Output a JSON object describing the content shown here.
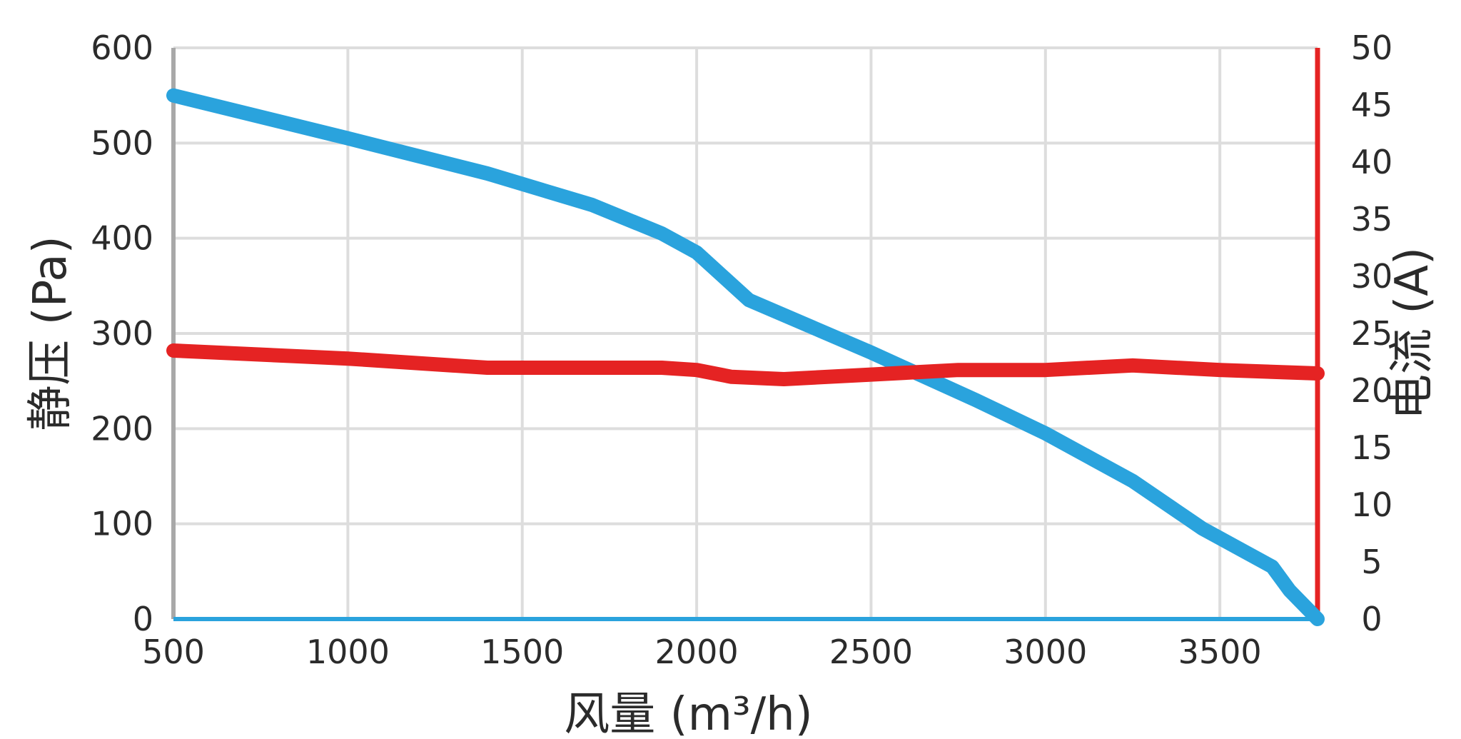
{
  "chart_data": {
    "type": "line",
    "xlabel": "风量 (m³/h)",
    "ylabel_left": "静压 (Pa)",
    "ylabel_right": "电流 (A)",
    "xlim": [
      500,
      3780
    ],
    "ylim_left": [
      0,
      600
    ],
    "ylim_right": [
      0,
      50
    ],
    "x_ticks": [
      500,
      1000,
      1500,
      2000,
      2500,
      3000,
      3500
    ],
    "y_left_ticks": [
      0,
      100,
      200,
      300,
      400,
      500,
      600
    ],
    "y_right_ticks": [
      0,
      5,
      10,
      15,
      20,
      25,
      30,
      35,
      40,
      45,
      50
    ],
    "grid": true,
    "series": [
      {
        "axis": "left",
        "color": "#2aa3dd",
        "x": [
          500,
          1000,
          1400,
          1700,
          1900,
          2000,
          2150,
          2500,
          2800,
          3000,
          3250,
          3450,
          3650,
          3700,
          3780
        ],
        "y": [
          550,
          505,
          468,
          435,
          405,
          385,
          335,
          280,
          230,
          195,
          145,
          95,
          55,
          30,
          0
        ]
      },
      {
        "axis": "right",
        "color": "#e52323",
        "x": [
          500,
          1000,
          1400,
          1700,
          1900,
          2000,
          2100,
          2250,
          2500,
          2750,
          3000,
          3250,
          3500,
          3780
        ],
        "y": [
          23.5,
          22.8,
          22.0,
          22.0,
          22.0,
          21.8,
          21.2,
          21.0,
          21.4,
          21.8,
          21.8,
          22.2,
          21.8,
          21.5
        ]
      }
    ],
    "colors": {
      "grid": "#dddddd",
      "left_axis": "#a8a8a8",
      "right_axis": "#e52323",
      "baseline": "#2aa3dd",
      "text": "#2b2b2b"
    }
  }
}
